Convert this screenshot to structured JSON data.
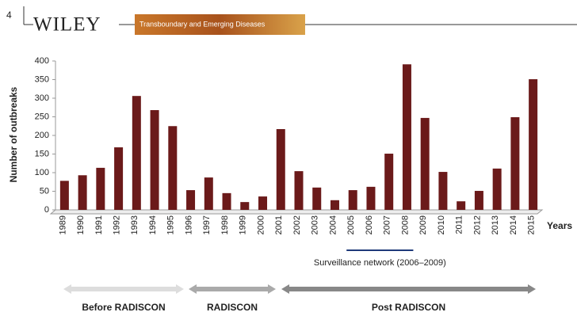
{
  "header": {
    "page_number": "4",
    "publisher": "WILEY",
    "journal": "Transboundary and Emerging Diseases"
  },
  "chart_data": {
    "type": "bar",
    "ylabel": "Number of outbreaks",
    "xlabel": "Years",
    "categories": [
      "1989",
      "1990",
      "1991",
      "1992",
      "1993",
      "1994",
      "1995",
      "1996",
      "1997",
      "1998",
      "1999",
      "2000",
      "2001",
      "2002",
      "2003",
      "2004",
      "2005",
      "2006",
      "2007",
      "2008",
      "2009",
      "2010",
      "2011",
      "2012",
      "2013",
      "2014",
      "2015"
    ],
    "values": [
      78,
      93,
      113,
      168,
      306,
      268,
      225,
      53,
      87,
      45,
      21,
      36,
      217,
      104,
      60,
      26,
      53,
      62,
      151,
      391,
      247,
      102,
      23,
      51,
      111,
      249,
      351
    ],
    "color": "#6b1a1a",
    "ylim": [
      0,
      400
    ],
    "yticks": [
      0,
      50,
      100,
      150,
      200,
      250,
      300,
      350,
      400
    ],
    "grid": false,
    "surveillance_label": "Surveillance network (2006–2009)",
    "periods": [
      "Before RADISCON",
      "RADISCON",
      "Post RADISCON"
    ]
  }
}
